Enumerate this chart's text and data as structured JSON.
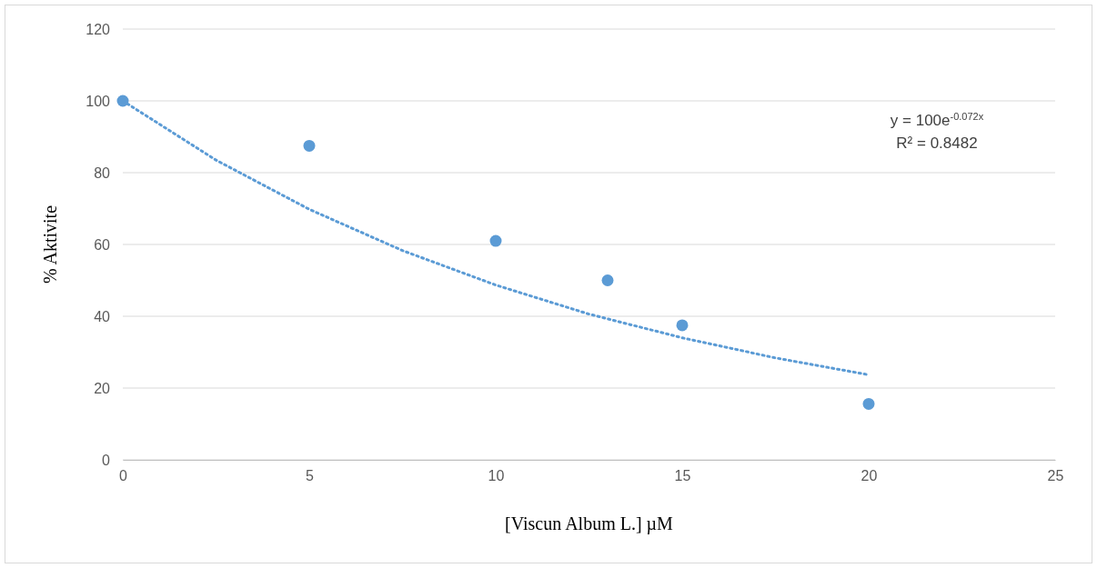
{
  "chart_data": {
    "type": "scatter",
    "xlabel": "[Viscun Album L.] µM",
    "ylabel": "% Aktivite",
    "xlim": [
      0,
      25
    ],
    "xticks": [
      0,
      5,
      10,
      15,
      20,
      25
    ],
    "ylim": [
      0,
      120
    ],
    "yticks": [
      0,
      20,
      40,
      60,
      80,
      100,
      120
    ],
    "grid": "y",
    "series": [
      {
        "marker": "circle",
        "color": "#5b9bd5",
        "x": [
          0,
          5,
          10,
          13,
          15,
          20
        ],
        "values": [
          100,
          87.5,
          61,
          50,
          37.5,
          15.6
        ]
      },
      {
        "type": "line",
        "line_style": "dotted",
        "marker": "none",
        "color": "#5b9bd5",
        "x": [
          0,
          2.5,
          5,
          7.5,
          10,
          12.5,
          15,
          17.5,
          20
        ],
        "values": [
          100,
          83.5,
          69.8,
          58.3,
          48.7,
          40.6,
          34,
          28.4,
          23.7
        ]
      }
    ],
    "annotations": [
      "y = 100e$^{-0.072x}$",
      "R² = 0.8482"
    ]
  }
}
